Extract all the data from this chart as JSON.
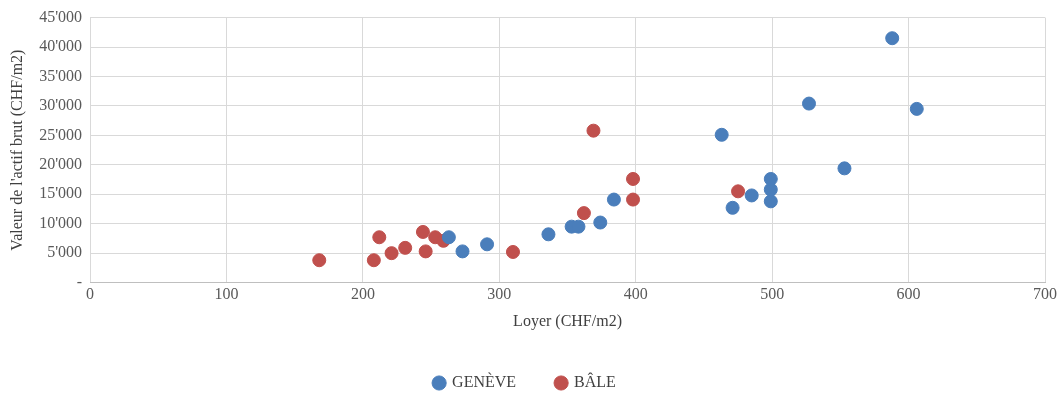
{
  "chart_data": {
    "type": "scatter",
    "xlabel": "Loyer (CHF/m2)",
    "ylabel": "Valeur de l'actif brut (CHF/m2)",
    "xlim": [
      0,
      700
    ],
    "xticks": [
      0,
      100,
      200,
      300,
      400,
      500,
      600,
      700
    ],
    "ylim": [
      0,
      45000
    ],
    "yticks": [
      {
        "value": 0,
        "label": "-"
      },
      {
        "value": 5000,
        "label": "5'000"
      },
      {
        "value": 10000,
        "label": "10'000"
      },
      {
        "value": 15000,
        "label": "15'000"
      },
      {
        "value": 20000,
        "label": "20'000"
      },
      {
        "value": 25000,
        "label": "25'000"
      },
      {
        "value": 30000,
        "label": "30'000"
      },
      {
        "value": 35000,
        "label": "35'000"
      },
      {
        "value": 40000,
        "label": "40'000"
      },
      {
        "value": 45000,
        "label": "45'000"
      }
    ],
    "grid": true,
    "legend": "bottom",
    "marker": "circle",
    "series": [
      {
        "name": "GENÈVE",
        "color": "#4a7ebb",
        "x": [
          263,
          273,
          291,
          336,
          353,
          358,
          374,
          384,
          463,
          471,
          485,
          499,
          499,
          499,
          527,
          553,
          588,
          606
        ],
        "values": [
          7700,
          5300,
          6500,
          8200,
          9500,
          9500,
          10200,
          14100,
          25100,
          12700,
          14800,
          13800,
          15800,
          17600,
          30400,
          19400,
          41500,
          29500
        ]
      },
      {
        "name": "BÂLE",
        "color": "#c0504d",
        "x": [
          168,
          208,
          212,
          221,
          231,
          244,
          246,
          253,
          259,
          310,
          362,
          369,
          398,
          398,
          475
        ],
        "values": [
          3800,
          3800,
          7700,
          5000,
          5900,
          8600,
          5300,
          7700,
          7100,
          5200,
          11800,
          25800,
          17600,
          14100,
          15500
        ]
      }
    ]
  }
}
